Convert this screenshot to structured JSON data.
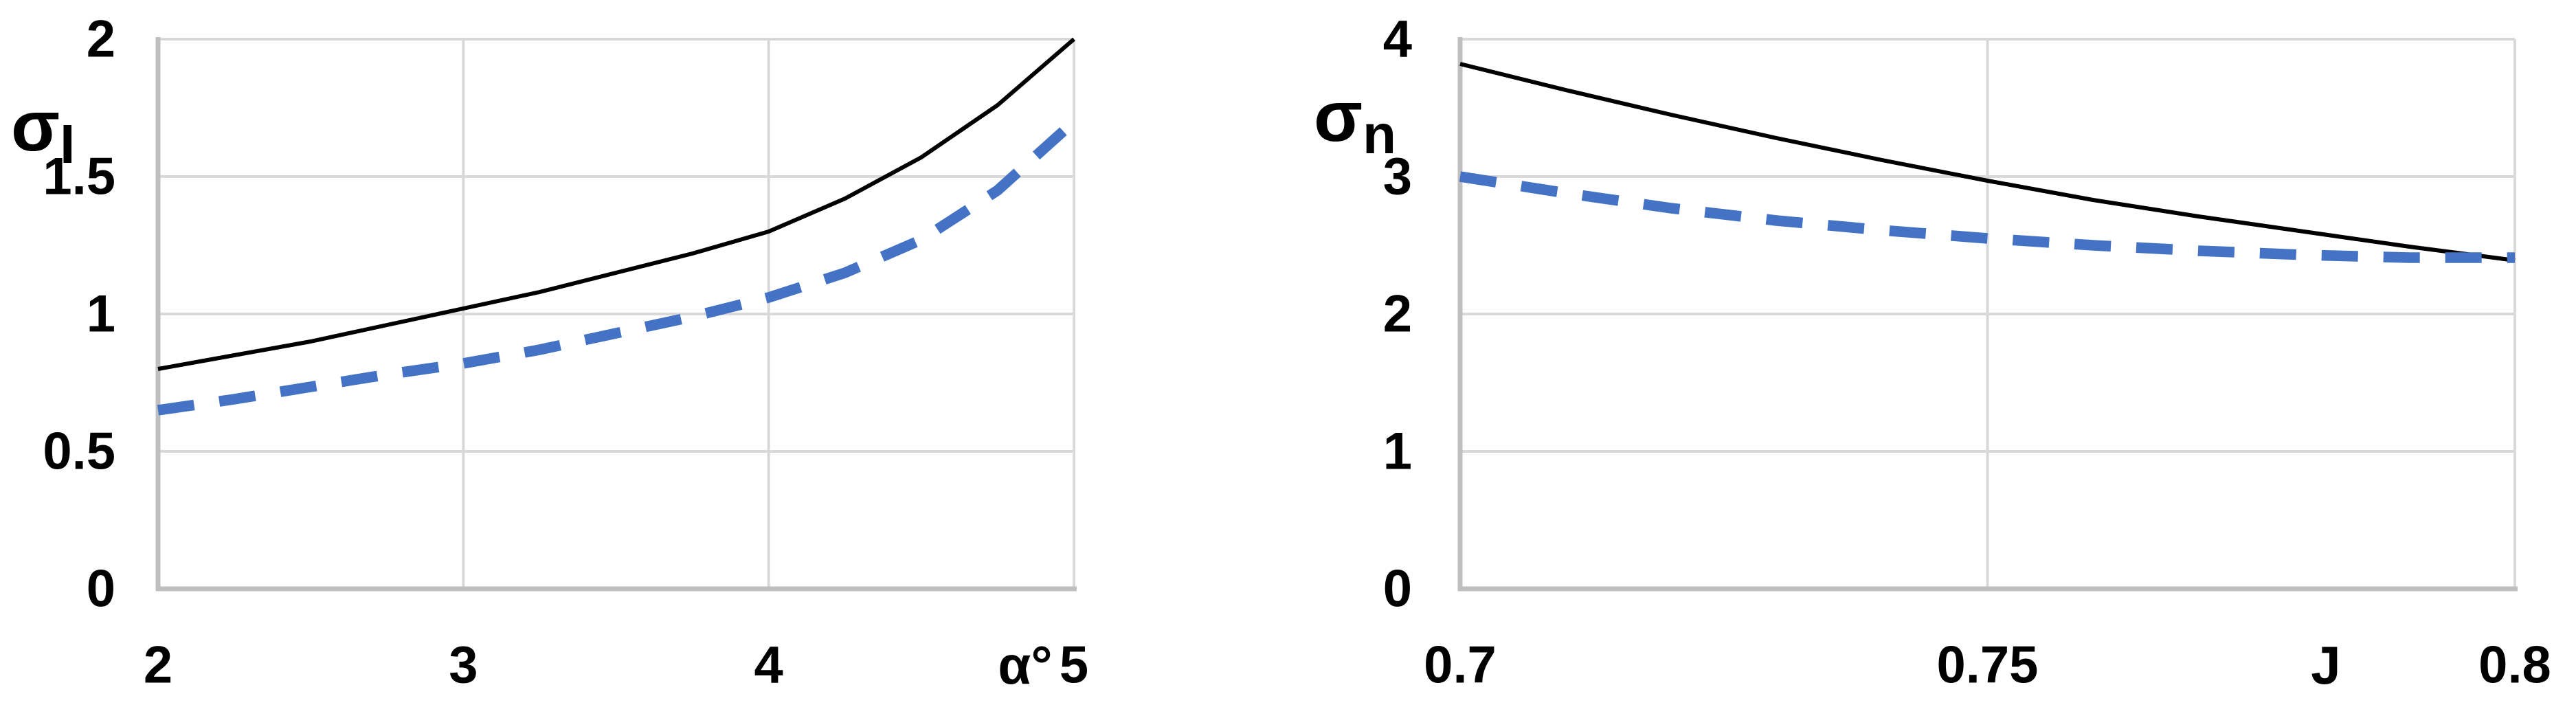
{
  "figure": {
    "background": "#ffffff",
    "description_colors": {
      "series_black": "#000000",
      "series_blue": "#4472C4",
      "gridline": "#D9D9D9",
      "axis_line": "#BFBFBF",
      "text": "#000000"
    }
  },
  "chart_data": [
    {
      "type": "line",
      "title": "",
      "ylabel": "σ",
      "ylabel_sub": "I",
      "xlabel": "α°",
      "x_ticks": [
        "2",
        "3",
        "4",
        "5"
      ],
      "x_tick_values": [
        2,
        3,
        4,
        5
      ],
      "y_ticks": [
        "0",
        "0.5",
        "1",
        "1.5",
        "2"
      ],
      "y_tick_values": [
        0,
        0.5,
        1,
        1.5,
        2
      ],
      "xlim": [
        2,
        5
      ],
      "ylim": [
        0,
        2
      ],
      "grid": true,
      "legend": "none",
      "series": [
        {
          "name": "solid-black-line",
          "style": "solid",
          "color": "#000000",
          "x": [
            2,
            2.25,
            2.5,
            2.75,
            3,
            3.25,
            3.5,
            3.75,
            4,
            4.25,
            4.5,
            4.75,
            5
          ],
          "y": [
            0.8,
            0.85,
            0.9,
            0.96,
            1.02,
            1.08,
            1.15,
            1.22,
            1.3,
            1.42,
            1.57,
            1.76,
            2.0
          ]
        },
        {
          "name": "dashed-blue-line",
          "style": "dashed",
          "color": "#4472C4",
          "x": [
            2,
            2.25,
            2.5,
            2.75,
            3,
            3.25,
            3.5,
            3.75,
            4,
            4.25,
            4.5,
            4.75,
            5
          ],
          "y": [
            0.65,
            0.69,
            0.735,
            0.78,
            0.82,
            0.87,
            0.93,
            0.99,
            1.06,
            1.15,
            1.27,
            1.45,
            1.7
          ]
        }
      ]
    },
    {
      "type": "line",
      "title": "",
      "ylabel": "σ",
      "ylabel_sub": "n",
      "xlabel": "J",
      "x_ticks": [
        "0.7",
        "0.75",
        "0.8"
      ],
      "x_tick_values": [
        0.7,
        0.75,
        0.8
      ],
      "y_ticks": [
        "0",
        "1",
        "2",
        "3",
        "4"
      ],
      "y_tick_values": [
        0,
        1,
        2,
        3,
        4
      ],
      "xlim": [
        0.7,
        0.8
      ],
      "ylim": [
        0,
        4
      ],
      "grid": true,
      "legend": "none",
      "series": [
        {
          "name": "solid-black-line",
          "style": "solid",
          "color": "#000000",
          "x": [
            0.7,
            0.71,
            0.72,
            0.73,
            0.74,
            0.75,
            0.76,
            0.77,
            0.78,
            0.79,
            0.8
          ],
          "y": [
            3.82,
            3.63,
            3.45,
            3.28,
            3.12,
            2.97,
            2.83,
            2.71,
            2.6,
            2.49,
            2.39
          ]
        },
        {
          "name": "dashed-blue-line",
          "style": "dashed",
          "color": "#4472C4",
          "x": [
            0.7,
            0.71,
            0.72,
            0.73,
            0.74,
            0.75,
            0.76,
            0.77,
            0.78,
            0.79,
            0.8
          ],
          "y": [
            3.0,
            2.88,
            2.77,
            2.68,
            2.61,
            2.55,
            2.5,
            2.46,
            2.43,
            2.41,
            2.41
          ]
        }
      ]
    }
  ]
}
